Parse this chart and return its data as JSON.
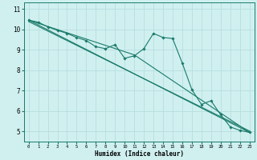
{
  "xlabel": "Humidex (Indice chaleur)",
  "bg_color": "#d0f0f0",
  "grid_color": "#b8dede",
  "line_color": "#1a7a6a",
  "spine_color": "#1a7a6a",
  "xlim": [
    -0.5,
    23.5
  ],
  "ylim": [
    4.5,
    11.3
  ],
  "yticks": [
    5,
    6,
    7,
    8,
    9,
    10,
    11
  ],
  "xticks": [
    0,
    1,
    2,
    3,
    4,
    5,
    6,
    7,
    8,
    9,
    10,
    11,
    12,
    13,
    14,
    15,
    16,
    17,
    18,
    19,
    20,
    21,
    22,
    23
  ],
  "line1_x": [
    0,
    1,
    2,
    3,
    4,
    5,
    6,
    7,
    8,
    9,
    10,
    11,
    12,
    13,
    14,
    15,
    16,
    17,
    18,
    19,
    20,
    21,
    22,
    23
  ],
  "line1_y": [
    10.45,
    10.35,
    10.12,
    9.95,
    9.8,
    9.6,
    9.45,
    9.15,
    9.05,
    9.25,
    8.58,
    8.7,
    9.05,
    9.8,
    9.6,
    9.55,
    8.35,
    7.05,
    6.32,
    6.5,
    5.82,
    5.22,
    5.05,
    4.95
  ],
  "line2_x": [
    0,
    23
  ],
  "line2_y": [
    10.45,
    4.95
  ],
  "line3_x": [
    0,
    23
  ],
  "line3_y": [
    10.38,
    5.02
  ],
  "line4_x": [
    0,
    11,
    23
  ],
  "line4_y": [
    10.45,
    8.75,
    4.95
  ]
}
